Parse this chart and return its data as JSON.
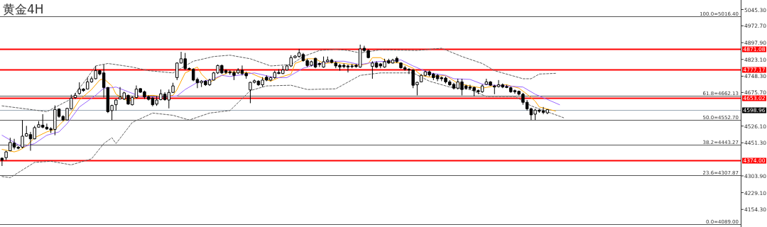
{
  "chart_data": {
    "type": "candlestick",
    "title": "黄金4H",
    "categories": [
      null,
      null,
      null,
      null,
      null,
      null,
      null,
      null,
      null,
      null,
      null,
      null,
      null,
      null,
      null,
      null,
      null,
      null,
      null,
      null,
      null,
      null,
      null,
      null,
      null,
      null,
      null,
      null,
      null,
      null,
      null,
      null,
      null,
      null,
      null,
      null,
      null,
      null,
      null,
      null,
      null,
      null,
      null,
      null,
      null,
      null,
      null,
      null,
      null,
      null,
      null,
      null,
      null,
      null,
      null,
      null,
      null,
      null,
      null,
      null,
      null,
      null,
      null,
      null,
      null,
      null,
      null,
      null,
      null,
      null,
      null,
      null,
      null,
      null,
      null,
      null,
      null,
      null,
      null,
      null,
      null,
      null,
      null,
      null,
      null,
      null,
      null,
      null,
      null,
      null,
      null,
      null,
      null,
      null,
      null,
      null,
      null,
      null,
      null,
      null,
      null,
      null,
      null,
      null,
      null,
      null,
      null,
      null,
      null,
      null,
      null,
      null,
      null,
      null,
      null,
      null,
      null,
      null,
      null,
      null,
      null,
      null,
      null,
      null,
      null,
      null,
      null,
      null,
      null,
      null,
      null,
      null,
      null,
      null,
      null,
      null,
      null,
      null,
      null,
      null,
      null,
      null,
      null,
      null,
      null,
      null,
      null,
      null,
      null,
      null,
      null,
      null,
      null,
      null,
      null,
      null,
      null,
      null,
      null,
      null,
      null,
      null,
      null,
      null,
      null,
      null,
      null,
      null,
      null,
      null,
      null,
      null,
      null,
      null,
      null,
      null,
      null,
      null,
      null,
      null,
      null,
      null
    ],
    "ohlc": [
      [
        4383,
        4386,
        4348,
        4374
      ],
      [
        4385,
        4416,
        4374,
        4411
      ],
      [
        4416,
        4474,
        4414,
        4453
      ],
      [
        4450,
        4469,
        4422,
        4432
      ],
      [
        4432,
        4437,
        4422,
        4427
      ],
      [
        4432,
        4553,
        4427,
        4481
      ],
      [
        4481,
        4527,
        4479,
        4492
      ],
      [
        4488,
        4500,
        4416,
        4469
      ],
      [
        4469,
        4527,
        4467,
        4519
      ],
      [
        4521,
        4548,
        4519,
        4532
      ],
      [
        4530,
        4579,
        4516,
        4521
      ],
      [
        4521,
        4537,
        4509,
        4513
      ],
      [
        4514,
        4521,
        4495,
        4509
      ],
      [
        4511,
        4618,
        4485,
        4600
      ],
      [
        4602,
        4605,
        4563,
        4569
      ],
      [
        4569,
        4574,
        4548,
        4553
      ],
      [
        4553,
        4607,
        4551,
        4605
      ],
      [
        4603,
        4666,
        4600,
        4650
      ],
      [
        4653,
        4674,
        4647,
        4663
      ],
      [
        4671,
        4721,
        4666,
        4691
      ],
      [
        4691,
        4695,
        4679,
        4684
      ],
      [
        4691,
        4742,
        4689,
        4723
      ],
      [
        4723,
        4747,
        4719,
        4737
      ],
      [
        4737,
        4794,
        4734,
        4773
      ],
      [
        4773,
        4776,
        4752,
        4758
      ],
      [
        4763,
        4800,
        4653,
        4698
      ],
      [
        4698,
        4700,
        4584,
        4590
      ],
      [
        4595,
        4621,
        4553,
        4618
      ],
      [
        4621,
        4647,
        4595,
        4642
      ],
      [
        4647,
        4700,
        4645,
        4655
      ],
      [
        4647,
        4679,
        4642,
        4674
      ],
      [
        4663,
        4666,
        4621,
        4624
      ],
      [
        4621,
        4658,
        4618,
        4653
      ],
      [
        4653,
        4707,
        4649,
        4691
      ],
      [
        4693,
        4695,
        4674,
        4677
      ],
      [
        4679,
        4684,
        4647,
        4656
      ],
      [
        4656,
        4663,
        4640,
        4645
      ],
      [
        4651,
        4656,
        4614,
        4621
      ],
      [
        4624,
        4660,
        4616,
        4642
      ],
      [
        4644,
        4689,
        4641,
        4670
      ],
      [
        4668,
        4677,
        4639,
        4644
      ],
      [
        4642,
        4689,
        4605,
        4676
      ],
      [
        4676,
        4719,
        4674,
        4705
      ],
      [
        4742,
        4810,
        4731,
        4807
      ],
      [
        4807,
        4857,
        4805,
        4826
      ],
      [
        4826,
        4852,
        4776,
        4782
      ],
      [
        4783,
        4787,
        4775,
        4779
      ],
      [
        4779,
        4784,
        4726,
        4731
      ],
      [
        4734,
        4742,
        4695,
        4719
      ],
      [
        4719,
        4731,
        4700,
        4726
      ],
      [
        4726,
        4731,
        4705,
        4710
      ],
      [
        4710,
        4737,
        4705,
        4731
      ],
      [
        4731,
        4768,
        4729,
        4763
      ],
      [
        4763,
        4800,
        4758,
        4796
      ],
      [
        4796,
        4800,
        4758,
        4763
      ],
      [
        4773,
        4779,
        4758,
        4765
      ],
      [
        4768,
        4775,
        4755,
        4763
      ],
      [
        4765,
        4773,
        4731,
        4752
      ],
      [
        4763,
        4784,
        4758,
        4775
      ],
      [
        4775,
        4796,
        4752,
        4760
      ],
      [
        4761,
        4768,
        4737,
        4750
      ],
      [
        4687,
        4723,
        4628,
        4721
      ],
      [
        4721,
        4734,
        4716,
        4728
      ],
      [
        4726,
        4731,
        4705,
        4710
      ],
      [
        4710,
        4744,
        4700,
        4731
      ],
      [
        4744,
        4752,
        4726,
        4731
      ],
      [
        4731,
        4747,
        4726,
        4742
      ],
      [
        4742,
        4773,
        4737,
        4765
      ],
      [
        4765,
        4779,
        4758,
        4760
      ],
      [
        4760,
        4794,
        4758,
        4776
      ],
      [
        4776,
        4800,
        4773,
        4794
      ],
      [
        4794,
        4842,
        4789,
        4831
      ],
      [
        4831,
        4842,
        4828,
        4838
      ],
      [
        4836,
        4870,
        4831,
        4852
      ],
      [
        4845,
        4852,
        4813,
        4818
      ],
      [
        4818,
        4826,
        4789,
        4796
      ],
      [
        4797,
        4818,
        4792,
        4813
      ],
      [
        4828,
        4831,
        4784,
        4789
      ],
      [
        4805,
        4810,
        4789,
        4800
      ],
      [
        4789,
        4836,
        4786,
        4813
      ],
      [
        4813,
        4836,
        4810,
        4820
      ],
      [
        4820,
        4826,
        4805,
        4810
      ],
      [
        4807,
        4815,
        4784,
        4794
      ],
      [
        4797,
        4803,
        4773,
        4789
      ],
      [
        4797,
        4805,
        4784,
        4791
      ],
      [
        4794,
        4800,
        4765,
        4789
      ],
      [
        4794,
        4803,
        4784,
        4791
      ],
      [
        4797,
        4803,
        4786,
        4791
      ],
      [
        4789,
        4889,
        4786,
        4870
      ],
      [
        4873,
        4884,
        4857,
        4863
      ],
      [
        4863,
        4868,
        4828,
        4831
      ],
      [
        4792,
        4815,
        4737,
        4807
      ],
      [
        4807,
        4815,
        4784,
        4789
      ],
      [
        4803,
        4807,
        4784,
        4794
      ],
      [
        4789,
        4826,
        4786,
        4813
      ],
      [
        4818,
        4826,
        4803,
        4807
      ],
      [
        4807,
        4826,
        4805,
        4820
      ],
      [
        4828,
        4836,
        4807,
        4813
      ],
      [
        4807,
        4810,
        4782,
        4786
      ],
      [
        4786,
        4794,
        4773,
        4779
      ],
      [
        4779,
        4784,
        4758,
        4776
      ],
      [
        4776,
        4779,
        4695,
        4708
      ],
      [
        4710,
        4723,
        4663,
        4721
      ],
      [
        4723,
        4758,
        4721,
        4752
      ],
      [
        4752,
        4773,
        4747,
        4768
      ],
      [
        4768,
        4773,
        4747,
        4754
      ],
      [
        4758,
        4763,
        4731,
        4742
      ],
      [
        4752,
        4758,
        4726,
        4737
      ],
      [
        4742,
        4747,
        4726,
        4737
      ],
      [
        4740,
        4747,
        4716,
        4723
      ],
      [
        4723,
        4731,
        4705,
        4710
      ],
      [
        4712,
        4719,
        4689,
        4695
      ],
      [
        4695,
        4737,
        4689,
        4723
      ],
      [
        4723,
        4737,
        4663,
        4689
      ],
      [
        4705,
        4710,
        4689,
        4695
      ],
      [
        4700,
        4710,
        4687,
        4695
      ],
      [
        4698,
        4702,
        4658,
        4684
      ],
      [
        4684,
        4689,
        4668,
        4679
      ],
      [
        4679,
        4712,
        4674,
        4705
      ],
      [
        4712,
        4737,
        4710,
        4723
      ],
      [
        4723,
        4726,
        4705,
        4708
      ],
      [
        4705,
        4710,
        4668,
        4700
      ],
      [
        4702,
        4731,
        4698,
        4710
      ],
      [
        4710,
        4716,
        4695,
        4700
      ],
      [
        4702,
        4710,
        4695,
        4698
      ],
      [
        4697,
        4702,
        4674,
        4679
      ],
      [
        4684,
        4689,
        4670,
        4679
      ],
      [
        4681,
        4684,
        4663,
        4668
      ],
      [
        4668,
        4674,
        4621,
        4632
      ],
      [
        4632,
        4642,
        4595,
        4603
      ],
      [
        4603,
        4608,
        4553,
        4576
      ],
      [
        4579,
        4603,
        4553,
        4597
      ],
      [
        4597,
        4600,
        4585,
        4592
      ],
      [
        4593,
        4611,
        4579,
        4587
      ],
      [
        4585,
        4600,
        4579,
        4599
      ],
      null,
      null,
      null,
      null,
      null,
      null,
      null,
      null,
      null,
      null,
      null,
      null,
      null,
      null,
      null,
      null,
      null,
      null,
      null,
      null,
      null,
      null,
      null,
      null,
      null,
      null,
      null,
      null,
      null,
      null,
      null,
      null,
      null,
      null,
      null,
      null,
      null,
      null,
      null,
      null,
      null,
      null,
      null,
      null,
      null,
      null,
      null
    ],
    "series": [
      {
        "type": "line",
        "color": "#ffa500",
        "values": [
          4422,
          null,
          null,
          4411,
          4416,
          null,
          4437,
          null,
          4474,
          null,
          null,
          4500,
          null,
          4511,
          null,
          4548,
          4558,
          null,
          null,
          4642,
          null,
          null,
          4689,
          null,
          4731,
          4737,
          null,
          4705,
          4668,
          null,
          null,
          4637,
          null,
          null,
          4660,
          null,
          null,
          4663,
          null,
          null,
          4656,
          null,
          4663,
          4689,
          null,
          4763,
          null,
          null,
          4789,
          4758,
          null,
          4721,
          null,
          null,
          4752,
          null,
          4768,
          null,
          null,
          null,
          null,
          4763,
          null,
          4747,
          null,
          null,
          4726,
          null,
          4742,
          null,
          null,
          4758,
          4805,
          null,
          null,
          4826,
          null,
          4826,
          null,
          4805,
          null,
          null,
          4810,
          null,
          4805,
          null,
          null,
          null,
          4797,
          null,
          4805,
          4831,
          null,
          4831,
          null,
          4810,
          null,
          null,
          4807,
          null,
          null,
          4784,
          null,
          4752,
          null,
          4744,
          null,
          null,
          null,
          4752,
          null,
          null,
          4716,
          null,
          null,
          4705,
          null,
          null,
          4695,
          null,
          null,
          4705,
          null,
          null,
          4710,
          null,
          null,
          4695,
          null,
          4668,
          null,
          4637,
          4611,
          null,
          null,
          null,
          4593,
          null,
          null,
          null,
          null,
          null,
          null,
          null,
          null,
          null,
          null,
          null,
          null,
          null,
          null,
          null,
          null,
          null,
          null,
          null,
          null,
          null,
          null,
          null,
          null,
          null,
          null,
          null,
          null,
          null,
          null,
          null,
          null,
          null,
          null,
          null,
          null,
          null,
          null,
          null,
          null,
          null,
          null,
          null,
          null,
          null
        ]
      },
      {
        "type": "line",
        "color": "#9966ff",
        "values": [
          4485,
          null,
          null,
          null,
          null,
          4432,
          null,
          null,
          4448,
          null,
          null,
          4485,
          null,
          null,
          4500,
          null,
          4537,
          null,
          null,
          4611,
          null,
          null,
          null,
          4663,
          null,
          4695,
          null,
          4697,
          4700,
          null,
          null,
          4679,
          null,
          null,
          4658,
          null,
          null,
          null,
          null,
          4656,
          null,
          null,
          null,
          4660,
          null,
          4689,
          null,
          null,
          4721,
          null,
          null,
          4731,
          null,
          null,
          4752,
          null,
          4747,
          null,
          null,
          null,
          null,
          null,
          4763,
          null,
          null,
          null,
          null,
          4742,
          null,
          null,
          4742,
          null,
          null,
          null,
          4784,
          null,
          null,
          4800,
          null,
          null,
          null,
          4815,
          null,
          null,
          4815,
          null,
          null,
          null,
          4800,
          null,
          null,
          null,
          4813,
          null,
          null,
          4815,
          null,
          null,
          4821,
          null,
          null,
          4794,
          null,
          null,
          null,
          4763,
          null,
          null,
          null,
          4752,
          null,
          4737,
          null,
          null,
          null,
          4734,
          null,
          null,
          4713,
          null,
          null,
          4708,
          null,
          null,
          4705,
          null,
          null,
          null,
          4700,
          null,
          null,
          4668,
          null,
          null,
          null,
          null,
          null,
          4621,
          null,
          null,
          null,
          null,
          null,
          null,
          null,
          null,
          null,
          null,
          null,
          null,
          null,
          null,
          null,
          null,
          null,
          null,
          null,
          null,
          null,
          null,
          null,
          null,
          null,
          null,
          null,
          null,
          null,
          null,
          null,
          null,
          null,
          null,
          null,
          null,
          null,
          null,
          null,
          null,
          null,
          null,
          null,
          null
        ]
      },
      {
        "type": "line",
        "color": "#606060",
        "line_style": "dashed",
        "values": [
          4616,
          null,
          null,
          null,
          null,
          null,
          null,
          4600,
          null,
          null,
          null,
          4590,
          null,
          null,
          null,
          null,
          null,
          4647,
          null,
          null,
          null,
          4742,
          null,
          4794,
          null,
          null,
          4805,
          null,
          4800,
          null,
          null,
          null,
          4789,
          null,
          null,
          null,
          4773,
          null,
          null,
          null,
          null,
          null,
          4763,
          null,
          null,
          null,
          null,
          4815,
          null,
          null,
          null,
          null,
          4836,
          null,
          null,
          null,
          4842,
          null,
          null,
          null,
          null,
          4826,
          null,
          null,
          null,
          null,
          4794,
          null,
          null,
          null,
          null,
          4800,
          null,
          null,
          4836,
          null,
          null,
          null,
          4863,
          null,
          null,
          null,
          4868,
          null,
          null,
          4863,
          null,
          null,
          4852,
          null,
          null,
          null,
          null,
          4866,
          null,
          null,
          null,
          null,
          null,
          null,
          null,
          null,
          4863,
          null,
          null,
          null,
          null,
          null,
          4873,
          null,
          null,
          null,
          null,
          4836,
          null,
          null,
          null,
          null,
          4805,
          null,
          null,
          4773,
          null,
          null,
          null,
          null,
          null,
          null,
          4737,
          null,
          4737,
          null,
          4758,
          null,
          null,
          null,
          4761,
          null,
          null,
          null,
          null,
          null,
          null,
          null,
          null,
          null,
          null,
          null,
          null,
          null,
          null,
          null,
          null,
          null,
          null,
          null,
          null,
          null,
          null,
          null,
          null,
          null,
          null,
          null,
          null,
          null,
          null,
          null,
          null,
          null,
          null,
          null,
          null,
          null,
          null,
          null,
          null,
          null,
          null,
          null,
          null,
          null
        ]
      },
      {
        "type": "line",
        "color": "#606060",
        "line_style": "dashed",
        "values": [
          4301,
          null,
          4296,
          null,
          null,
          null,
          null,
          null,
          4364,
          null,
          null,
          null,
          4369,
          null,
          null,
          null,
          null,
          4353,
          null,
          null,
          null,
          null,
          4380,
          null,
          null,
          4448,
          null,
          4474,
          4448,
          null,
          null,
          null,
          4542,
          null,
          null,
          null,
          null,
          4584,
          null,
          null,
          null,
          null,
          4574,
          null,
          null,
          null,
          4553,
          null,
          null,
          null,
          null,
          4584,
          null,
          null,
          null,
          null,
          4595,
          null,
          null,
          null,
          null,
          4684,
          null,
          null,
          null,
          4705,
          null,
          null,
          null,
          null,
          null,
          4708,
          null,
          null,
          null,
          4689,
          null,
          null,
          null,
          null,
          null,
          null,
          4692,
          null,
          null,
          null,
          null,
          null,
          4752,
          null,
          null,
          null,
          null,
          4763,
          null,
          null,
          null,
          null,
          null,
          null,
          null,
          4763,
          null,
          null,
          null,
          4726,
          null,
          null,
          null,
          null,
          4700,
          null,
          null,
          null,
          null,
          4689,
          null,
          null,
          null,
          4658,
          null,
          null,
          null,
          null,
          4658,
          null,
          4658,
          null,
          null,
          null,
          4616,
          null,
          null,
          null,
          null,
          null,
          null,
          null,
          4563,
          null,
          null,
          null,
          null,
          null,
          null,
          null,
          null,
          null,
          null,
          null,
          null,
          null,
          null,
          null,
          null,
          null,
          null,
          null,
          null,
          null,
          null,
          null,
          null,
          null,
          null,
          null,
          null,
          null,
          null,
          null,
          null,
          null,
          null,
          null,
          null,
          null,
          null,
          null,
          null,
          null,
          null,
          null
        ]
      }
    ],
    "ylim": [
      4076,
      5088
    ],
    "yticks": [
      {
        "value": 5045.3,
        "label": "5045.30"
      },
      {
        "value": 4972.7,
        "label": "4972.70"
      },
      {
        "value": 4897.9,
        "label": "4897.90"
      },
      {
        "value": 4823.1,
        "label": "4823.10"
      },
      {
        "value": 4748.3,
        "label": "4748.30"
      },
      {
        "value": 4675.7,
        "label": "4675.70"
      },
      {
        "value": 4526.1,
        "label": "4526.10"
      },
      {
        "value": 4451.3,
        "label": "4451.30"
      },
      {
        "value": 4303.9,
        "label": "4303.90"
      },
      {
        "value": 4229.1,
        "label": "4229.10"
      },
      {
        "value": 4154.3,
        "label": "4154.30"
      }
    ],
    "ref_lines": [
      {
        "axis": "y",
        "value": 5016.4,
        "label": "100.0=5016.40",
        "color": "#555555"
      },
      {
        "axis": "y",
        "value": 4662.13,
        "label": "61.8=4662.13",
        "color": "#555555"
      },
      {
        "axis": "y",
        "value": 4552.7,
        "label": "50.0=4552.70",
        "color": "#555555"
      },
      {
        "axis": "y",
        "value": 4443.27,
        "label": "38.2=4443.27",
        "color": "#555555"
      },
      {
        "axis": "y",
        "value": 4307.87,
        "label": "23.6=4307.87",
        "color": "#555555"
      },
      {
        "axis": "y",
        "value": 4089,
        "label": "0.0=4089.00",
        "color": "#555555"
      },
      {
        "axis": "y",
        "value": 4871.08,
        "label": "4871.08",
        "color": "#ff0000"
      },
      {
        "axis": "y",
        "value": 4777.17,
        "label": "4777.17",
        "color": "#ff0000"
      },
      {
        "axis": "y",
        "value": 4653.02,
        "label": "4653.02",
        "color": "#ff0000"
      },
      {
        "axis": "y",
        "value": 4374,
        "label": "4374.00",
        "color": "#ff0000"
      },
      {
        "axis": "y",
        "value": 4598.96,
        "label": "4598.96",
        "color": "#9aa8b4"
      }
    ]
  }
}
